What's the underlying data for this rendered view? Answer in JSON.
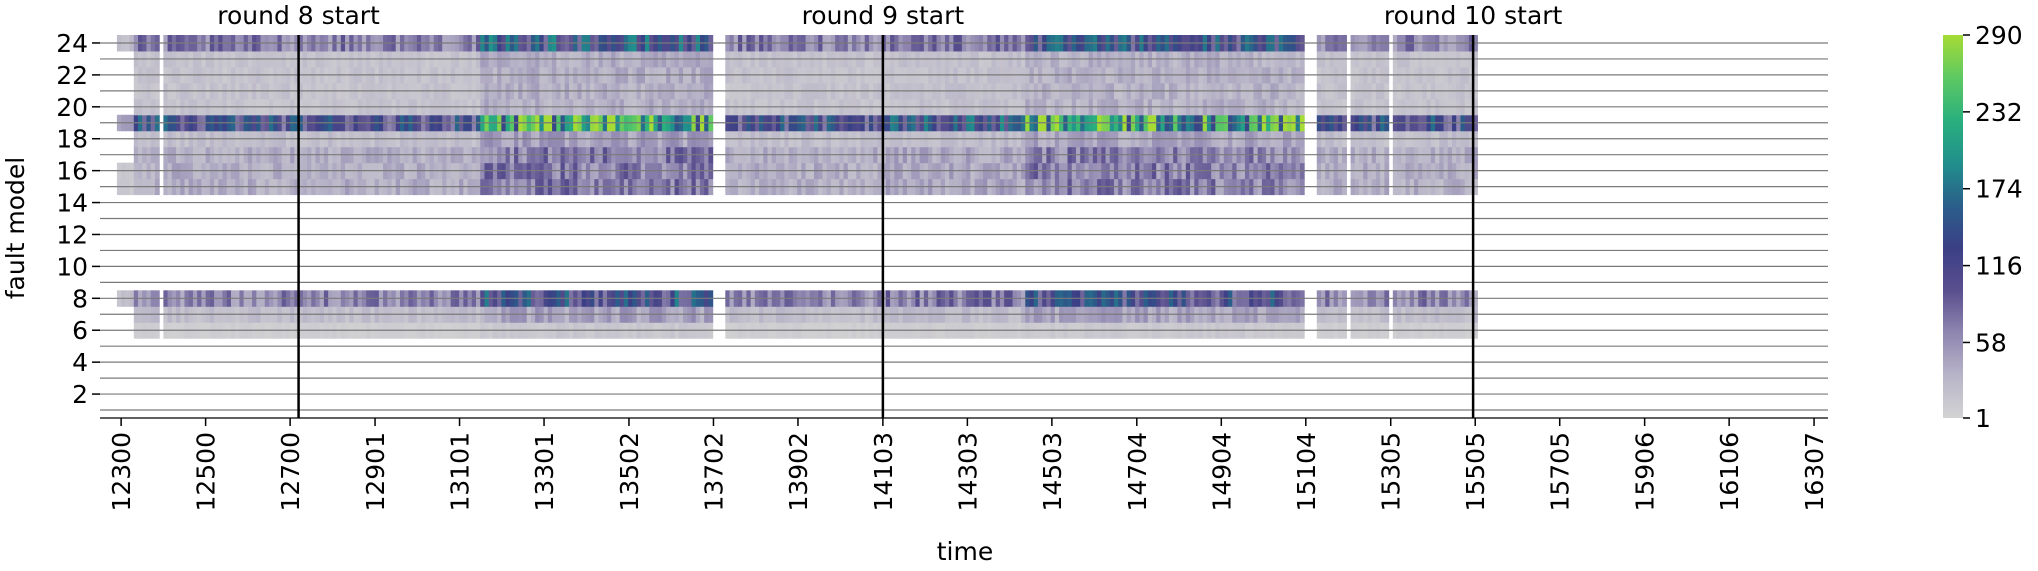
{
  "chart_data": {
    "type": "heatmap",
    "title": "",
    "xlabel": "time",
    "ylabel": "fault model",
    "x_tick_labels": [
      "12300",
      "12500",
      "12700",
      "12901",
      "13101",
      "13301",
      "13502",
      "13702",
      "13902",
      "14103",
      "14303",
      "14503",
      "14704",
      "14904",
      "15104",
      "15305",
      "15505",
      "15705",
      "15906",
      "16106",
      "16307"
    ],
    "y_tick_labels": [
      "24",
      "22",
      "20",
      "18",
      "16",
      "14",
      "12",
      "10",
      "8",
      "6",
      "4",
      "2"
    ],
    "x_range": [
      12250,
      16340
    ],
    "y_range": [
      1,
      24
    ],
    "colorbar": {
      "tick_labels": [
        "290",
        "232",
        "174",
        "116",
        "58",
        "1"
      ],
      "min": 1,
      "max": 290,
      "colormap": [
        "#d3d3d3",
        "#b8b4c8",
        "#8f86b0",
        "#5a4f8e",
        "#3b3f86",
        "#2a5f8a",
        "#21908c",
        "#2ab07e",
        "#5ec962",
        "#a6db35"
      ]
    },
    "markers": [
      {
        "x": 12720,
        "label": "round 8 start"
      },
      {
        "x": 14103,
        "label": "round 9 start"
      },
      {
        "x": 15500,
        "label": "round 10 start"
      }
    ],
    "row_profiles": {
      "24": 85,
      "23": 22,
      "22": 22,
      "21": 22,
      "20": 22,
      "19": 150,
      "18": 28,
      "17": 45,
      "16": 45,
      "15": 45,
      "8": 80,
      "7": 28,
      "6": 8
    },
    "active_rows": [
      6,
      7,
      8,
      15,
      16,
      17,
      18,
      19,
      20,
      21,
      22,
      23,
      24
    ],
    "data_gaps": [
      [
        12390,
        12400
      ],
      [
        13700,
        13730
      ],
      [
        15100,
        15130
      ],
      [
        15200,
        15210
      ],
      [
        15300,
        15310
      ],
      [
        15510,
        16340
      ]
    ]
  }
}
